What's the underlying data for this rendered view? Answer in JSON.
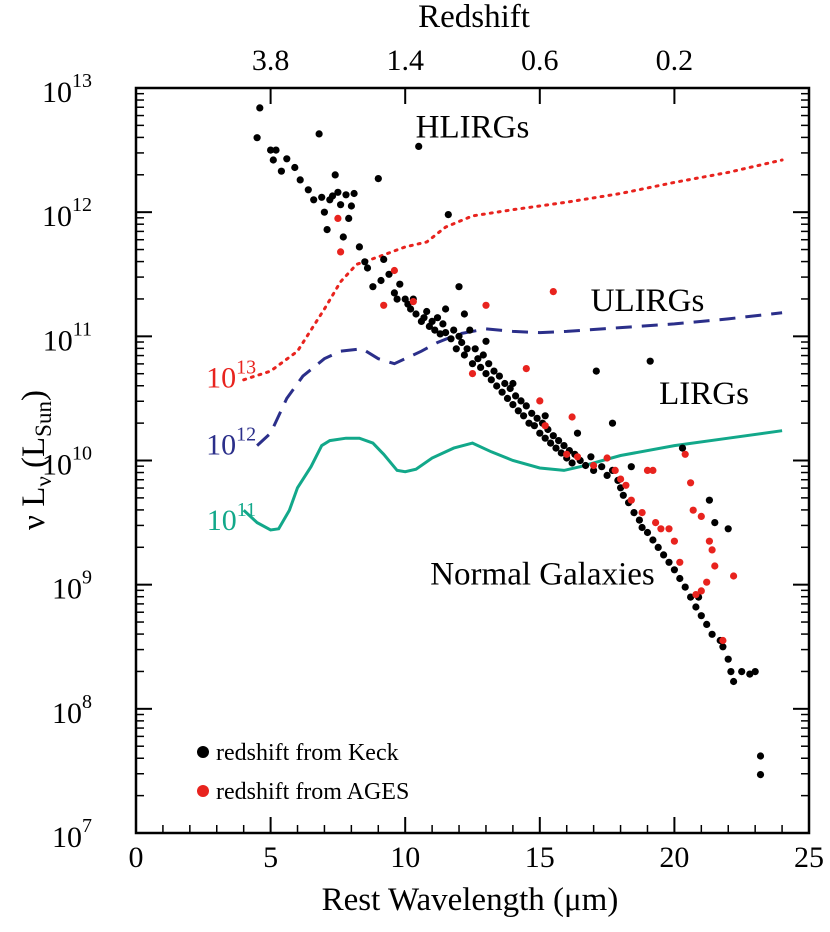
{
  "chart_data": {
    "type": "scatter",
    "xlabel": "Rest Wavelength (μm)",
    "ylabel": "ν Lν (LSun)",
    "ylabel_parts": {
      "nu": "ν L",
      "sub_nu": "ν",
      "open": " (L",
      "sub_sun": "Sun",
      "close": ")"
    },
    "top_xlabel": "Redshift",
    "xlim": [
      0,
      25
    ],
    "ylim": [
      10000000.0,
      10000000000000.0
    ],
    "yscale": "log",
    "x_ticks": [
      0,
      5,
      10,
      15,
      20,
      25
    ],
    "x_tick_labels": [
      "0",
      "5",
      "10",
      "15",
      "20",
      "25"
    ],
    "y_ticks": [
      {
        "base": "10",
        "exp": "7",
        "value": 7
      },
      {
        "base": "10",
        "exp": "8",
        "value": 8
      },
      {
        "base": "10",
        "exp": "9",
        "value": 9
      },
      {
        "base": "10",
        "exp": "10",
        "value": 10
      },
      {
        "base": "10",
        "exp": "11",
        "value": 11
      },
      {
        "base": "10",
        "exp": "12",
        "value": 12
      },
      {
        "base": "10",
        "exp": "13",
        "value": 13
      }
    ],
    "top_ticks": [
      {
        "label": "3.8",
        "x": 5.0
      },
      {
        "label": "1.4",
        "x": 10.0
      },
      {
        "label": "0.6",
        "x": 15.0
      },
      {
        "label": "0.2",
        "x": 20.0
      }
    ],
    "regions": [
      {
        "label": "HLIRGs",
        "x": 12.5,
        "logy": 12.7
      },
      {
        "label": "ULIRGs",
        "x": 19.0,
        "logy": 11.3
      },
      {
        "label": "LIRGs",
        "x": 21.1,
        "logy": 10.55
      },
      {
        "label": "Normal Galaxies",
        "x": 15.1,
        "logy": 9.1
      }
    ],
    "curves": [
      {
        "label_base": "10",
        "label_exp": "13",
        "label_x": 2.9,
        "label_logy": 10.67,
        "color": "#e8231e",
        "style": "dotted",
        "points": [
          [
            4.0,
            10.65
          ],
          [
            5.0,
            10.72
          ],
          [
            6.0,
            10.88
          ],
          [
            7.0,
            11.22
          ],
          [
            7.6,
            11.44
          ],
          [
            8.2,
            11.58
          ],
          [
            9.0,
            11.64
          ],
          [
            10.0,
            11.72
          ],
          [
            10.8,
            11.76
          ],
          [
            11.5,
            11.88
          ],
          [
            12.5,
            11.97
          ],
          [
            14.0,
            12.02
          ],
          [
            16.0,
            12.08
          ],
          [
            18.0,
            12.15
          ],
          [
            20.0,
            12.24
          ],
          [
            22.0,
            12.32
          ],
          [
            24.0,
            12.42
          ]
        ]
      },
      {
        "label_base": "10",
        "label_exp": "12",
        "label_x": 2.9,
        "label_logy": 10.13,
        "color": "#2b2f8a",
        "style": "dashed",
        "points": [
          [
            4.5,
            10.12
          ],
          [
            5.0,
            10.22
          ],
          [
            5.6,
            10.5
          ],
          [
            6.2,
            10.68
          ],
          [
            7.0,
            10.82
          ],
          [
            7.6,
            10.88
          ],
          [
            8.4,
            10.9
          ],
          [
            9.0,
            10.82
          ],
          [
            9.6,
            10.78
          ],
          [
            10.0,
            10.82
          ],
          [
            10.6,
            10.88
          ],
          [
            11.2,
            10.95
          ],
          [
            12.0,
            11.02
          ],
          [
            13.0,
            11.06
          ],
          [
            14.0,
            11.04
          ],
          [
            15.0,
            11.03
          ],
          [
            16.0,
            11.04
          ],
          [
            18.0,
            11.07
          ],
          [
            20.0,
            11.1
          ],
          [
            22.0,
            11.14
          ],
          [
            24.0,
            11.19
          ]
        ]
      },
      {
        "label_base": "10",
        "label_exp": "11",
        "label_x": 2.9,
        "label_logy": 9.52,
        "color": "#12a88a",
        "style": "solid",
        "points": [
          [
            4.0,
            9.6
          ],
          [
            4.5,
            9.5
          ],
          [
            5.0,
            9.44
          ],
          [
            5.3,
            9.45
          ],
          [
            5.7,
            9.6
          ],
          [
            6.0,
            9.78
          ],
          [
            6.5,
            9.95
          ],
          [
            6.9,
            10.12
          ],
          [
            7.2,
            10.16
          ],
          [
            7.8,
            10.18
          ],
          [
            8.3,
            10.18
          ],
          [
            8.8,
            10.14
          ],
          [
            9.2,
            10.05
          ],
          [
            9.7,
            9.92
          ],
          [
            10.0,
            9.91
          ],
          [
            10.4,
            9.93
          ],
          [
            11.0,
            10.02
          ],
          [
            11.8,
            10.1
          ],
          [
            12.5,
            10.14
          ],
          [
            13.2,
            10.07
          ],
          [
            14.0,
            10.0
          ],
          [
            15.0,
            9.94
          ],
          [
            15.9,
            9.92
          ],
          [
            16.5,
            9.95
          ],
          [
            18.0,
            10.04
          ],
          [
            20.0,
            10.12
          ],
          [
            22.0,
            10.18
          ],
          [
            24.0,
            10.24
          ]
        ]
      }
    ],
    "series": [
      {
        "name": "redshift from Keck",
        "color": "#000000",
        "points": [
          [
            4.5,
            12.6
          ],
          [
            4.6,
            12.84
          ],
          [
            5.0,
            12.5
          ],
          [
            5.1,
            12.42
          ],
          [
            5.2,
            12.5
          ],
          [
            5.4,
            12.33
          ],
          [
            5.6,
            12.43
          ],
          [
            5.9,
            12.36
          ],
          [
            6.1,
            12.26
          ],
          [
            6.4,
            12.18
          ],
          [
            6.6,
            12.1
          ],
          [
            6.8,
            12.63
          ],
          [
            6.9,
            12.12
          ],
          [
            7.0,
            12.0
          ],
          [
            7.1,
            11.86
          ],
          [
            7.2,
            12.1
          ],
          [
            7.3,
            12.13
          ],
          [
            7.4,
            12.3
          ],
          [
            7.5,
            12.16
          ],
          [
            7.6,
            12.06
          ],
          [
            7.7,
            11.8
          ],
          [
            7.8,
            12.14
          ],
          [
            7.9,
            11.95
          ],
          [
            8.0,
            12.05
          ],
          [
            8.1,
            12.15
          ],
          [
            8.3,
            11.72
          ],
          [
            8.5,
            11.6
          ],
          [
            8.6,
            11.55
          ],
          [
            8.8,
            11.4
          ],
          [
            9.0,
            12.27
          ],
          [
            9.1,
            11.45
          ],
          [
            9.2,
            11.62
          ],
          [
            9.4,
            11.5
          ],
          [
            9.6,
            11.35
          ],
          [
            9.7,
            11.3
          ],
          [
            9.8,
            11.42
          ],
          [
            10.0,
            11.3
          ],
          [
            10.1,
            11.26
          ],
          [
            10.2,
            11.22
          ],
          [
            10.3,
            11.3
          ],
          [
            10.4,
            11.18
          ],
          [
            10.5,
            12.53
          ],
          [
            10.6,
            11.12
          ],
          [
            10.7,
            11.15
          ],
          [
            10.8,
            11.2
          ],
          [
            10.9,
            11.08
          ],
          [
            11.0,
            11.12
          ],
          [
            11.1,
            11.05
          ],
          [
            11.2,
            11.15
          ],
          [
            11.3,
            11.02
          ],
          [
            11.4,
            11.1
          ],
          [
            11.5,
            11.03
          ],
          [
            11.6,
            11.98
          ],
          [
            11.7,
            10.98
          ],
          [
            11.8,
            11.05
          ],
          [
            11.9,
            10.9
          ],
          [
            12.0,
            11.4
          ],
          [
            12.0,
            11.0
          ],
          [
            12.1,
            10.95
          ],
          [
            12.2,
            10.85
          ],
          [
            12.3,
            10.9
          ],
          [
            12.4,
            11.05
          ],
          [
            12.5,
            10.78
          ],
          [
            12.6,
            10.9
          ],
          [
            12.7,
            10.82
          ],
          [
            12.8,
            10.75
          ],
          [
            12.9,
            10.85
          ],
          [
            13.0,
            10.7
          ],
          [
            13.1,
            10.78
          ],
          [
            13.2,
            10.65
          ],
          [
            13.3,
            10.72
          ],
          [
            13.4,
            10.6
          ],
          [
            13.5,
            10.68
          ],
          [
            13.6,
            10.55
          ],
          [
            13.7,
            10.62
          ],
          [
            13.8,
            10.5
          ],
          [
            13.9,
            10.58
          ],
          [
            14.0,
            10.45
          ],
          [
            14.1,
            10.52
          ],
          [
            14.2,
            10.4
          ],
          [
            14.3,
            10.48
          ],
          [
            14.4,
            10.36
          ],
          [
            14.5,
            10.44
          ],
          [
            14.6,
            10.3
          ],
          [
            14.7,
            10.38
          ],
          [
            14.8,
            10.28
          ],
          [
            14.9,
            10.34
          ],
          [
            15.0,
            10.22
          ],
          [
            15.1,
            10.3
          ],
          [
            15.2,
            10.18
          ],
          [
            15.3,
            10.25
          ],
          [
            15.4,
            10.14
          ],
          [
            15.5,
            10.2
          ],
          [
            15.6,
            10.1
          ],
          [
            15.7,
            10.16
          ],
          [
            15.8,
            10.06
          ],
          [
            15.9,
            10.12
          ],
          [
            16.0,
            10.02
          ],
          [
            16.1,
            10.08
          ],
          [
            16.2,
            9.98
          ],
          [
            16.3,
            10.05
          ],
          [
            16.5,
            10.0
          ],
          [
            16.7,
            9.96
          ],
          [
            16.9,
            10.03
          ],
          [
            17.0,
            9.92
          ],
          [
            17.1,
            10.72
          ],
          [
            17.3,
            9.95
          ],
          [
            17.5,
            9.88
          ],
          [
            17.7,
            9.92
          ],
          [
            17.9,
            9.84
          ],
          [
            18.0,
            9.78
          ],
          [
            18.1,
            9.72
          ],
          [
            18.3,
            9.66
          ],
          [
            18.5,
            9.58
          ],
          [
            18.7,
            9.52
          ],
          [
            18.8,
            9.46
          ],
          [
            19.0,
            9.42
          ],
          [
            19.1,
            10.8
          ],
          [
            19.2,
            9.36
          ],
          [
            19.4,
            9.3
          ],
          [
            19.6,
            9.24
          ],
          [
            19.8,
            9.18
          ],
          [
            20.0,
            9.12
          ],
          [
            20.2,
            9.05
          ],
          [
            20.4,
            8.98
          ],
          [
            20.6,
            8.9
          ],
          [
            20.8,
            8.82
          ],
          [
            20.9,
            8.9
          ],
          [
            21.0,
            8.75
          ],
          [
            21.2,
            8.68
          ],
          [
            21.4,
            8.6
          ],
          [
            21.3,
            9.68
          ],
          [
            21.5,
            9.5
          ],
          [
            21.7,
            8.55
          ],
          [
            21.8,
            8.5
          ],
          [
            22.0,
            9.45
          ],
          [
            22.0,
            8.4
          ],
          [
            22.1,
            8.3
          ],
          [
            22.2,
            8.22
          ],
          [
            22.5,
            8.3
          ],
          [
            22.8,
            8.28
          ],
          [
            23.0,
            8.3
          ],
          [
            23.2,
            7.62
          ],
          [
            23.2,
            7.47
          ],
          [
            20.3,
            10.1
          ],
          [
            17.7,
            10.3
          ],
          [
            18.4,
            9.95
          ],
          [
            16.4,
            10.22
          ],
          [
            15.2,
            10.36
          ],
          [
            14.0,
            10.62
          ],
          [
            13.0,
            10.96
          ],
          [
            12.2,
            11.18
          ],
          [
            11.5,
            11.22
          ]
        ]
      },
      {
        "name": "redshift from AGES",
        "color": "#e8231e",
        "points": [
          [
            7.5,
            11.95
          ],
          [
            7.6,
            11.68
          ],
          [
            9.2,
            11.25
          ],
          [
            9.6,
            11.53
          ],
          [
            10.3,
            11.28
          ],
          [
            12.5,
            10.7
          ],
          [
            13.0,
            11.25
          ],
          [
            14.5,
            10.74
          ],
          [
            15.0,
            10.48
          ],
          [
            15.2,
            10.28
          ],
          [
            15.5,
            11.36
          ],
          [
            16.0,
            10.05
          ],
          [
            16.2,
            10.35
          ],
          [
            16.4,
            10.03
          ],
          [
            17.0,
            9.96
          ],
          [
            17.5,
            10.02
          ],
          [
            17.8,
            9.92
          ],
          [
            18.0,
            9.85
          ],
          [
            18.2,
            9.8
          ],
          [
            18.4,
            9.68
          ],
          [
            18.8,
            9.58
          ],
          [
            19.0,
            9.92
          ],
          [
            19.2,
            9.92
          ],
          [
            19.3,
            9.5
          ],
          [
            19.5,
            9.45
          ],
          [
            19.8,
            9.45
          ],
          [
            20.0,
            9.35
          ],
          [
            20.2,
            9.18
          ],
          [
            20.4,
            10.05
          ],
          [
            20.6,
            9.82
          ],
          [
            20.7,
            9.6
          ],
          [
            20.8,
            8.92
          ],
          [
            21.0,
            8.95
          ],
          [
            21.2,
            9.02
          ],
          [
            21.3,
            9.35
          ],
          [
            21.4,
            9.28
          ],
          [
            21.0,
            9.55
          ],
          [
            21.5,
            9.15
          ],
          [
            21.8,
            8.55
          ],
          [
            22.2,
            9.07
          ]
        ]
      }
    ],
    "legend": {
      "placement": "bottom-left"
    }
  }
}
